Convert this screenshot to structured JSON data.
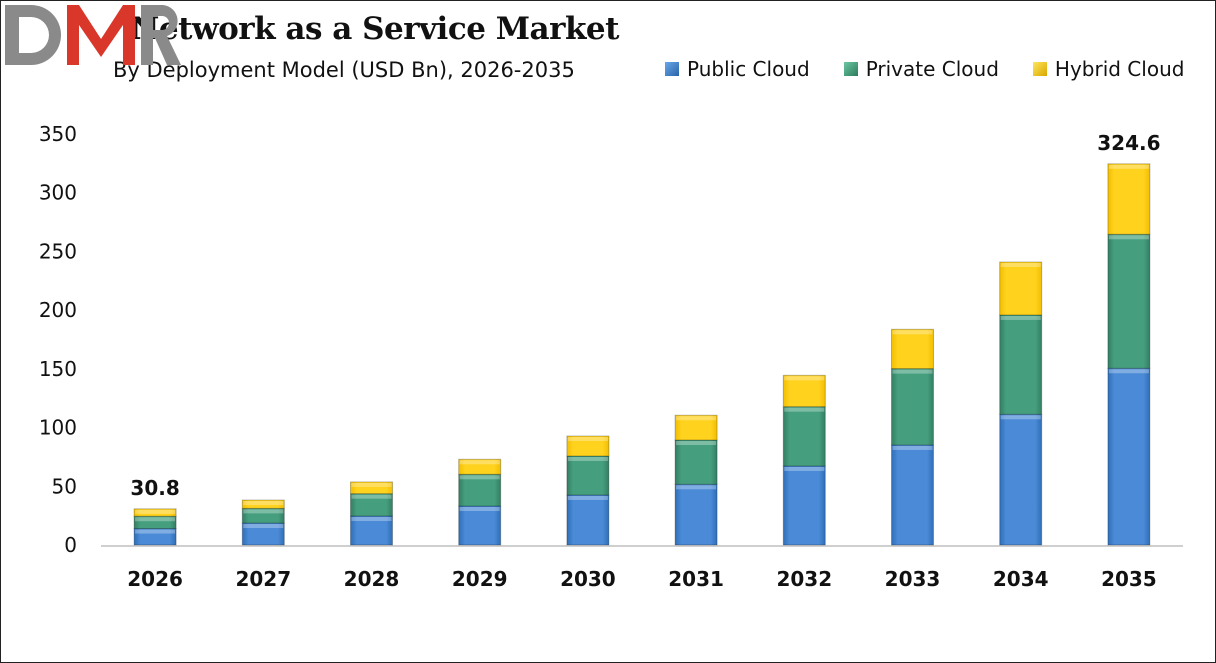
{
  "chart_data": {
    "type": "bar",
    "stacked": true,
    "title": "Network as a Service Market",
    "subtitle": "By Deployment Model (USD Bn), 2026-2035",
    "xlabel": "",
    "ylabel": "",
    "categories": [
      "2026",
      "2027",
      "2028",
      "2029",
      "2030",
      "2031",
      "2032",
      "2033",
      "2034",
      "2035"
    ],
    "series": [
      {
        "name": "Public Cloud",
        "color": "#3A7CC8",
        "values": [
          14.0,
          18.7,
          24.7,
          33.2,
          42.6,
          51.7,
          67.3,
          85.2,
          111.3,
          150.5
        ]
      },
      {
        "name": "Private Cloud",
        "color": "#3E9B78",
        "values": [
          10.5,
          12.5,
          19.0,
          27.0,
          33.2,
          37.7,
          50.5,
          65.0,
          84.6,
          114.1
        ]
      },
      {
        "name": "Hybrid Cloud",
        "color": "#FFCA0A",
        "values": [
          6.3,
          7.1,
          10.0,
          12.8,
          17.0,
          21.1,
          26.7,
          33.5,
          45.1,
          60.0
        ]
      }
    ],
    "data_labels": [
      {
        "category": "2026",
        "text": "30.8"
      },
      {
        "category": "2035",
        "text": "324.6"
      }
    ],
    "ylim": [
      0,
      350
    ],
    "yticks": [
      0,
      50,
      100,
      150,
      200,
      250,
      300,
      350
    ],
    "grid": false,
    "legend": "top-right"
  },
  "logo": {
    "text": "DMR",
    "colors": [
      "#8a8a8a",
      "#d9372a"
    ]
  }
}
